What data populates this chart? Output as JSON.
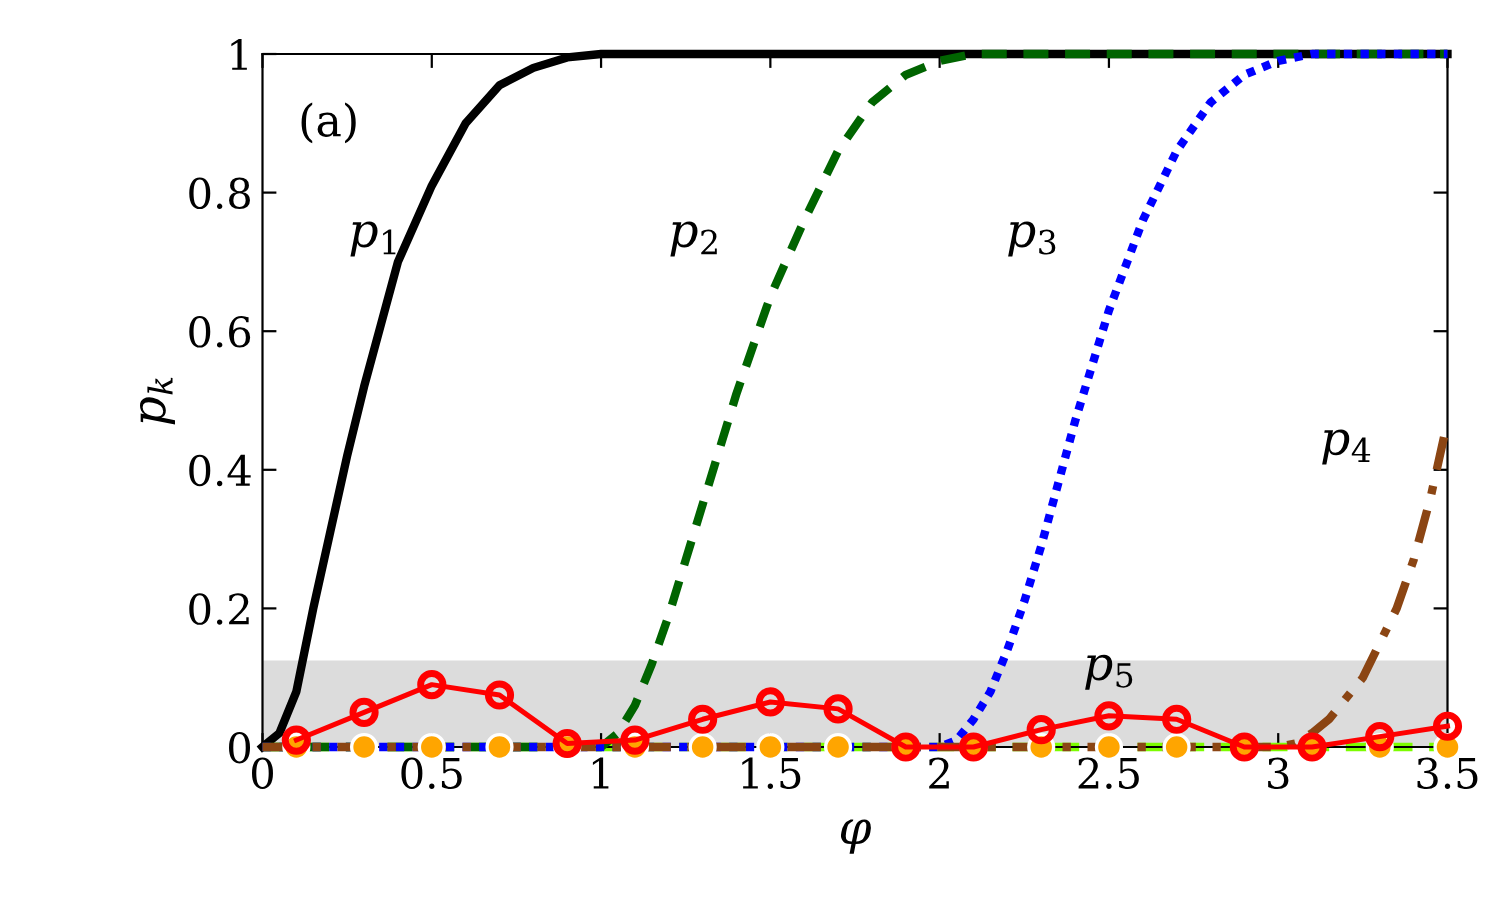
{
  "chart_data": {
    "type": "line",
    "xlabel": "φ",
    "ylabel": "p$_{k}$",
    "xlim": [
      0,
      3.5
    ],
    "ylim": [
      0,
      1
    ],
    "xticks": [
      0,
      0.5,
      1,
      1.5,
      2,
      2.5,
      3,
      3.5
    ],
    "yticks": [
      0,
      0.2,
      0.4,
      0.6,
      0.8,
      1
    ],
    "grid": false,
    "legend": false,
    "bands": [
      {
        "axis": "y",
        "from": 0,
        "to": 0.125,
        "color": "#dcdcdc"
      }
    ],
    "annotations": [
      "(a)",
      "p$_{1}$",
      "p$_{2}$",
      "p$_{3}$",
      "p$_{4}$",
      "p$_{5}$"
    ],
    "series": [
      {
        "color": "#7cfc00",
        "line_style": "dashed",
        "x": [
          0,
          3.5
        ],
        "values": [
          0,
          0
        ]
      },
      {
        "color": "#000000",
        "line_style": "solid",
        "x": [
          0,
          0.05,
          0.1,
          0.15,
          0.2,
          0.25,
          0.3,
          0.35,
          0.4,
          0.5,
          0.6,
          0.7,
          0.8,
          0.9,
          1.0,
          3.5
        ],
        "values": [
          0,
          0.02,
          0.08,
          0.2,
          0.31,
          0.42,
          0.52,
          0.61,
          0.7,
          0.81,
          0.9,
          0.955,
          0.98,
          0.995,
          1,
          1
        ]
      },
      {
        "color": "#006400",
        "line_style": "dashed",
        "x": [
          0,
          1,
          1.05,
          1.1,
          1.15,
          1.2,
          1.25,
          1.3,
          1.35,
          1.4,
          1.5,
          1.6,
          1.7,
          1.8,
          1.9,
          2.0,
          2.1,
          3.5
        ],
        "values": [
          0,
          0,
          0.02,
          0.06,
          0.12,
          0.19,
          0.27,
          0.35,
          0.43,
          0.51,
          0.65,
          0.76,
          0.86,
          0.93,
          0.97,
          0.99,
          1,
          1
        ]
      },
      {
        "color": "#0000ff",
        "line_style": "dotted",
        "x": [
          0,
          2,
          2.05,
          2.1,
          2.15,
          2.2,
          2.25,
          2.3,
          2.35,
          2.4,
          2.5,
          2.6,
          2.7,
          2.8,
          2.9,
          3.0,
          3.1,
          3.5
        ],
        "values": [
          0,
          0,
          0.01,
          0.04,
          0.08,
          0.14,
          0.21,
          0.29,
          0.38,
          0.47,
          0.63,
          0.76,
          0.86,
          0.93,
          0.97,
          0.99,
          1,
          1
        ]
      },
      {
        "color": "#8b4513",
        "line_style": "dashdot",
        "x": [
          0,
          3,
          3.05,
          3.1,
          3.15,
          3.2,
          3.25,
          3.3,
          3.35,
          3.4,
          3.45,
          3.5
        ],
        "values": [
          0,
          0,
          0.005,
          0.02,
          0.04,
          0.07,
          0.1,
          0.15,
          0.2,
          0.27,
          0.36,
          0.47
        ]
      },
      {
        "color": "#ff0000",
        "line_style": "solid",
        "marker": "circle",
        "x": [
          0.1,
          0.3,
          0.5,
          0.7,
          0.9,
          1.1,
          1.3,
          1.5,
          1.7,
          1.9,
          2.1,
          2.3,
          2.5,
          2.7,
          2.9,
          3.1,
          3.3,
          3.5
        ],
        "values": [
          0.01,
          0.05,
          0.09,
          0.075,
          0.005,
          0.01,
          0.04,
          0.065,
          0.055,
          0,
          0,
          0.025,
          0.045,
          0.04,
          0,
          0,
          0.015,
          0.03
        ]
      },
      {
        "type": "scatter",
        "color": "#ffa500",
        "marker": "circle",
        "x": [
          0.1,
          0.3,
          0.5,
          0.7,
          0.9,
          1.1,
          1.3,
          1.5,
          1.7,
          1.9,
          2.1,
          2.3,
          2.5,
          2.7,
          2.9,
          3.1,
          3.3,
          3.5
        ],
        "values": [
          0,
          0,
          0,
          0,
          0,
          0,
          0,
          0,
          0,
          0,
          0,
          0,
          0,
          0,
          0,
          0,
          0,
          0
        ]
      }
    ]
  }
}
